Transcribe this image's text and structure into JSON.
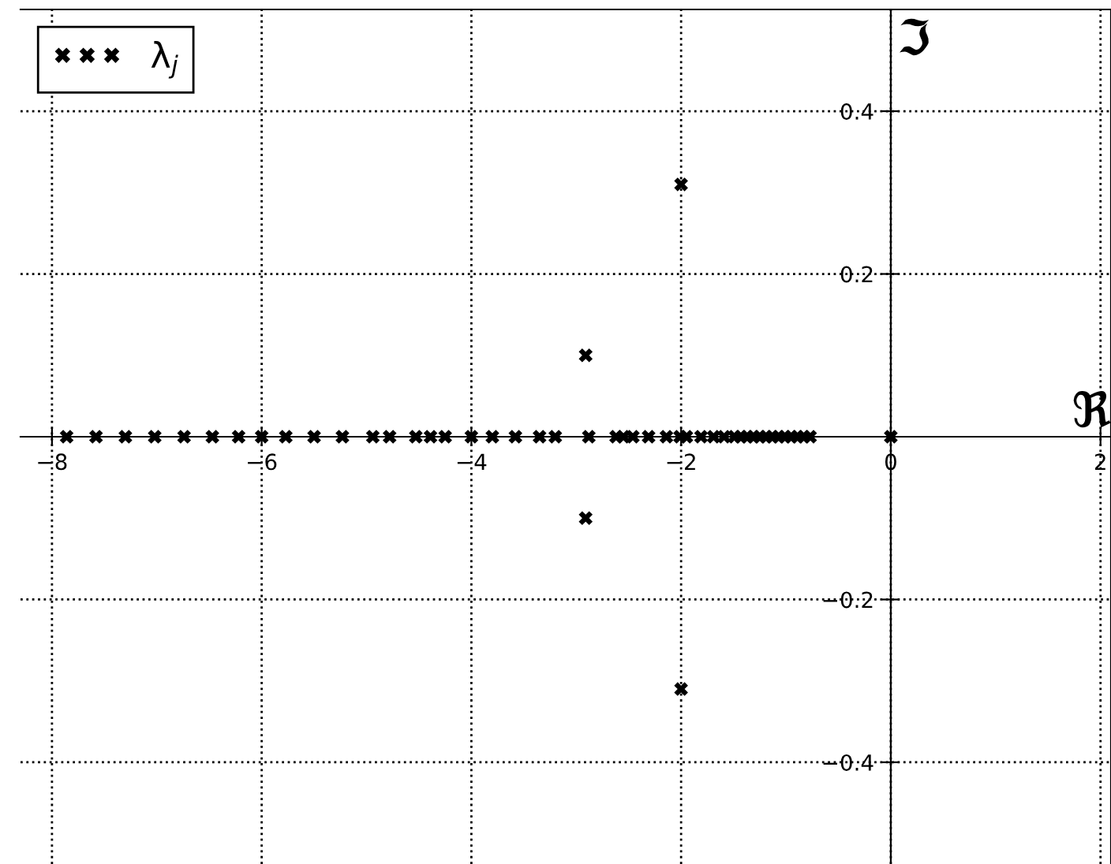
{
  "chart_data": {
    "type": "scatter",
    "xlabel": "ℜ",
    "ylabel": "ℑ",
    "xlim": [
      -8.3,
      2.1
    ],
    "ylim": [
      -0.525,
      0.525
    ],
    "xticks": [
      {
        "value": -8,
        "label": "−8"
      },
      {
        "value": -6,
        "label": "−6"
      },
      {
        "value": -4,
        "label": "−4"
      },
      {
        "value": -2,
        "label": "−2"
      },
      0,
      2
    ],
    "yticks": [
      {
        "value": -0.4,
        "label": "−0.4"
      },
      {
        "value": -0.2,
        "label": "−0.2"
      },
      0.2,
      0.4
    ],
    "grid": true,
    "legend": "top left",
    "marker": "cross",
    "series": [
      {
        "name": "λ$_{j}$",
        "color": "#000000",
        "x": [
          -7.86,
          -7.58,
          -7.3,
          -7.02,
          -6.74,
          -6.47,
          -6.22,
          -6.0,
          -5.77,
          -5.5,
          -5.23,
          -4.94,
          -4.78,
          -4.53,
          -4.39,
          -4.25,
          -4.0,
          -3.8,
          -3.58,
          -3.35,
          -3.2,
          -2.88,
          -2.62,
          -2.55,
          -2.46,
          -2.31,
          -2.14,
          -2.01,
          -1.95,
          -1.81,
          -1.69,
          -1.59,
          -1.49,
          -1.43,
          -1.37,
          -1.31,
          -1.25,
          -1.19,
          -1.13,
          -1.07,
          -1.01,
          -0.95,
          -0.89,
          -0.83,
          -0.77,
          0.0,
          -2.91,
          -2.91,
          -2.0,
          -2.0
        ],
        "values": [
          0,
          0,
          0,
          0,
          0,
          0,
          0,
          0,
          0,
          0,
          0,
          0,
          0,
          0,
          0,
          0,
          0,
          0,
          0,
          0,
          0,
          0,
          0,
          0,
          0,
          0,
          0,
          0,
          0,
          0,
          0,
          0,
          0,
          0,
          0,
          0,
          0,
          0,
          0,
          0,
          0,
          0,
          0,
          0,
          0,
          0,
          0.1,
          -0.1,
          0.31,
          -0.31
        ]
      }
    ]
  }
}
